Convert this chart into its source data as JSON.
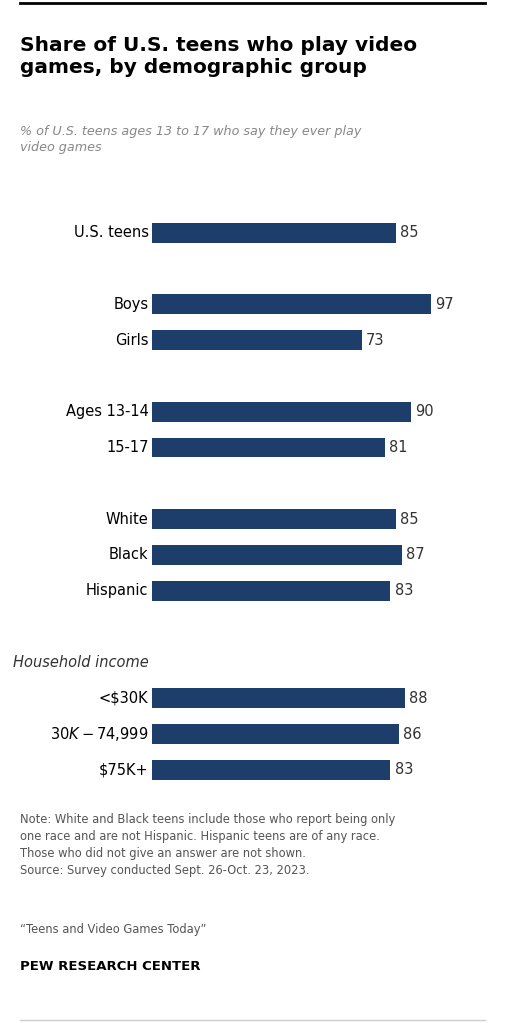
{
  "title": "Share of U.S. teens who play video\ngames, by demographic group",
  "subtitle": "% of U.S. teens ages 13 to 17 who say they ever play\nvideo games",
  "bar_color": "#1d3d6b",
  "categories": [
    "U.S. teens",
    "",
    "Boys",
    "Girls",
    "",
    "Ages 13-14",
    "15-17",
    "",
    "White",
    "Black",
    "Hispanic",
    "",
    "Household income",
    "<$30K",
    "$30K-$74,999",
    "$75K+"
  ],
  "values": [
    85,
    -1,
    97,
    73,
    -1,
    90,
    81,
    -1,
    85,
    87,
    83,
    -1,
    -1,
    88,
    86,
    83
  ],
  "note": "Note: White and Black teens include those who report being only\none race and are not Hispanic. Hispanic teens are of any race.\nThose who did not give an answer are not shown.\nSource: Survey conducted Sept. 26-Oct. 23, 2023.",
  "quote": "“Teens and Video Games Today”",
  "source_org": "PEW RESEARCH CENTER",
  "xlim": [
    0,
    100
  ],
  "background_color": "#ffffff"
}
